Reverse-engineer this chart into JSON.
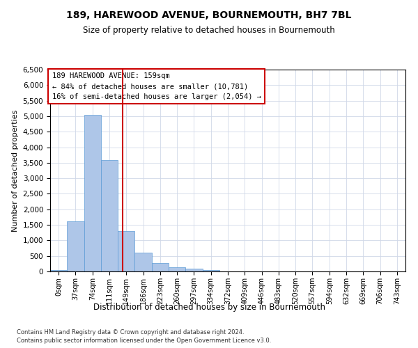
{
  "title": "189, HAREWOOD AVENUE, BOURNEMOUTH, BH7 7BL",
  "subtitle": "Size of property relative to detached houses in Bournemouth",
  "xlabel": "Distribution of detached houses by size in Bournemouth",
  "ylabel": "Number of detached properties",
  "bins": [
    "0sqm",
    "37sqm",
    "74sqm",
    "111sqm",
    "149sqm",
    "186sqm",
    "223sqm",
    "260sqm",
    "297sqm",
    "334sqm",
    "372sqm",
    "409sqm",
    "446sqm",
    "483sqm",
    "520sqm",
    "557sqm",
    "594sqm",
    "632sqm",
    "669sqm",
    "706sqm",
    "743sqm"
  ],
  "values": [
    50,
    1620,
    5050,
    3580,
    1290,
    600,
    270,
    130,
    80,
    50,
    10,
    0,
    0,
    0,
    0,
    0,
    0,
    0,
    0,
    0,
    0
  ],
  "bar_color": "#aec6e8",
  "bar_edge_color": "#5b9bd5",
  "background_color": "#ffffff",
  "grid_color": "#d0d8e8",
  "vline_color": "#cc0000",
  "annotation_text": "189 HAREWOOD AVENUE: 159sqm\n← 84% of detached houses are smaller (10,781)\n16% of semi-detached houses are larger (2,054) →",
  "annotation_box_color": "#cc0000",
  "ylim": [
    0,
    6500
  ],
  "yticks": [
    0,
    500,
    1000,
    1500,
    2000,
    2500,
    3000,
    3500,
    4000,
    4500,
    5000,
    5500,
    6000,
    6500
  ],
  "footer_line1": "Contains HM Land Registry data © Crown copyright and database right 2024.",
  "footer_line2": "Contains public sector information licensed under the Open Government Licence v3.0."
}
